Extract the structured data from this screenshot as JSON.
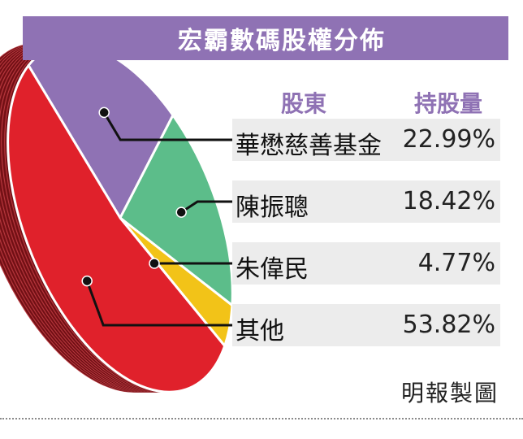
{
  "title": "宏霸數碼股權分佈",
  "table_header": {
    "shareholder": "股東",
    "holding": "持股量"
  },
  "credit": "明報製圖",
  "chart_data": {
    "type": "pie",
    "title": "宏霸數碼股權分佈",
    "slices": [
      {
        "label": "華懋慈善基金",
        "value_label": "22.99%",
        "value": 22.99,
        "color": "#8f72b4"
      },
      {
        "label": "陳振聰",
        "value_label": "18.42%",
        "value": 18.42,
        "color": "#5cbd8a"
      },
      {
        "label": "朱偉民",
        "value_label": "4.77%",
        "value": 4.77,
        "color": "#f2c318"
      },
      {
        "label": "其他",
        "value_label": "53.82%",
        "value": 53.82,
        "color": "#e0212b"
      }
    ],
    "side_color": "#7e1419"
  }
}
